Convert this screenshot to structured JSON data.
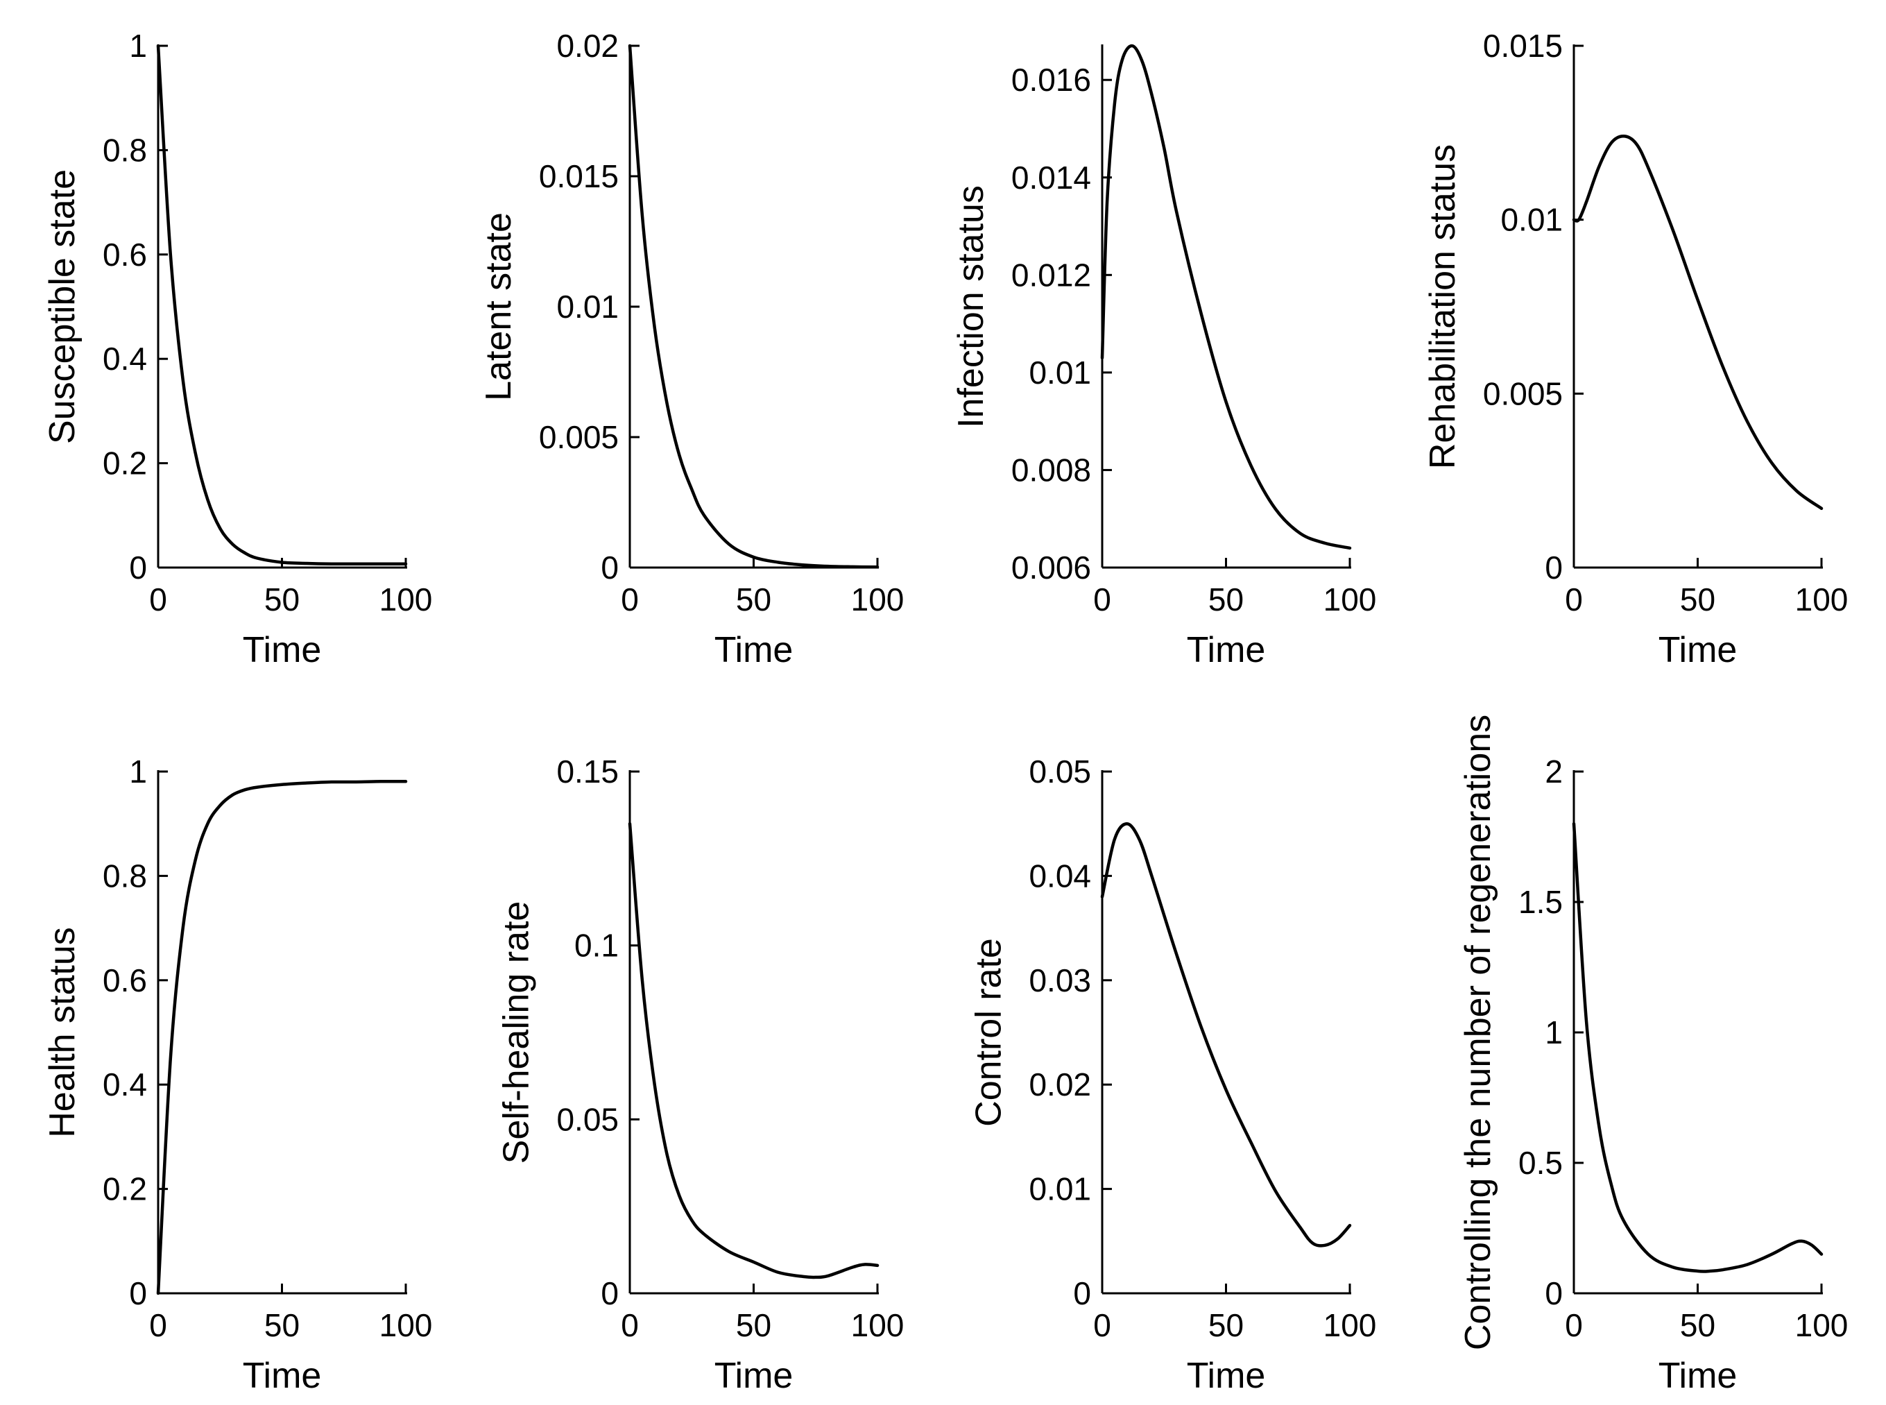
{
  "chart_data": [
    {
      "type": "line",
      "xlabel": "Time",
      "ylabel": "Susceptible state",
      "xlim": [
        0,
        100
      ],
      "ylim": [
        0,
        1
      ],
      "xticks": [
        0,
        50,
        100
      ],
      "xtick_labels": [
        "0",
        "50",
        "100"
      ],
      "yticks": [
        0,
        0.2,
        0.4,
        0.6,
        0.8,
        1
      ],
      "ytick_labels": [
        "0",
        "0.2",
        "0.4",
        "0.6",
        "0.8",
        "1"
      ],
      "series": [
        {
          "name": "Susceptible state",
          "x": [
            0,
            5,
            10,
            15,
            20,
            25,
            30,
            35,
            40,
            50,
            60,
            70,
            80,
            90,
            100
          ],
          "y": [
            1,
            0.6,
            0.36,
            0.22,
            0.13,
            0.075,
            0.045,
            0.028,
            0.018,
            0.01,
            0.008,
            0.007,
            0.007,
            0.007,
            0.007
          ]
        }
      ]
    },
    {
      "type": "line",
      "xlabel": "Time",
      "ylabel": "Latent state",
      "xlim": [
        0,
        100
      ],
      "ylim": [
        0,
        0.02
      ],
      "xticks": [
        0,
        50,
        100
      ],
      "xtick_labels": [
        "0",
        "50",
        "100"
      ],
      "yticks": [
        0,
        0.005,
        0.01,
        0.015,
        0.02
      ],
      "ytick_labels": [
        "0",
        "0.005",
        "0.01",
        "0.015",
        "0.02"
      ],
      "series": [
        {
          "name": "Latent state",
          "x": [
            0,
            5,
            10,
            15,
            20,
            25,
            30,
            40,
            50,
            60,
            70,
            80,
            90,
            100
          ],
          "y": [
            0.02,
            0.0135,
            0.0092,
            0.0063,
            0.0043,
            0.003,
            0.002,
            0.0009,
            0.0004,
            0.0002,
            0.0001,
            5e-05,
            3e-05,
            2e-05
          ]
        }
      ]
    },
    {
      "type": "line",
      "xlabel": "Time",
      "ylabel": "Infection status",
      "xlim": [
        0,
        100
      ],
      "ylim": [
        0.006,
        0.0167
      ],
      "xticks": [
        0,
        50,
        100
      ],
      "xtick_labels": [
        "0",
        "50",
        "100"
      ],
      "yticks": [
        0.006,
        0.008,
        0.01,
        0.012,
        0.014,
        0.016
      ],
      "ytick_labels": [
        "0.006",
        "0.008",
        "0.01",
        "0.012",
        "0.014",
        "0.016"
      ],
      "series": [
        {
          "name": "Infection status",
          "x": [
            0,
            2,
            5,
            8,
            12,
            16,
            20,
            25,
            30,
            40,
            50,
            60,
            70,
            80,
            90,
            100
          ],
          "y": [
            0.0103,
            0.0135,
            0.0155,
            0.0164,
            0.0167,
            0.0164,
            0.0157,
            0.0146,
            0.0133,
            0.0112,
            0.0094,
            0.0081,
            0.0072,
            0.0067,
            0.0065,
            0.0064
          ]
        }
      ]
    },
    {
      "type": "line",
      "xlabel": "Time",
      "ylabel": "Rehabilitation status",
      "xlim": [
        0,
        100
      ],
      "ylim": [
        0,
        0.015
      ],
      "xticks": [
        0,
        50,
        100
      ],
      "xtick_labels": [
        "0",
        "50",
        "100"
      ],
      "yticks": [
        0,
        0.005,
        0.01,
        0.015
      ],
      "ytick_labels": [
        "0",
        "0.005",
        "0.01",
        "0.015"
      ],
      "series": [
        {
          "name": "Rehabilitation status",
          "x": [
            0,
            2,
            5,
            10,
            15,
            20,
            25,
            30,
            40,
            50,
            60,
            70,
            80,
            90,
            100
          ],
          "y": [
            0.01,
            0.01,
            0.0105,
            0.0115,
            0.0122,
            0.0124,
            0.0122,
            0.0115,
            0.0097,
            0.0077,
            0.0058,
            0.0042,
            0.003,
            0.0022,
            0.0017
          ]
        }
      ]
    },
    {
      "type": "line",
      "xlabel": "Time",
      "ylabel": "Health status",
      "xlim": [
        0,
        100
      ],
      "ylim": [
        0,
        1
      ],
      "xticks": [
        0,
        50,
        100
      ],
      "xtick_labels": [
        "0",
        "50",
        "100"
      ],
      "yticks": [
        0,
        0.2,
        0.4,
        0.6,
        0.8,
        1
      ],
      "ytick_labels": [
        "0",
        "0.2",
        "0.4",
        "0.6",
        "0.8",
        "1"
      ],
      "series": [
        {
          "name": "Health status",
          "x": [
            0,
            5,
            10,
            15,
            20,
            25,
            30,
            35,
            40,
            50,
            60,
            70,
            80,
            90,
            100
          ],
          "y": [
            0,
            0.45,
            0.7,
            0.83,
            0.9,
            0.935,
            0.955,
            0.965,
            0.97,
            0.975,
            0.978,
            0.98,
            0.98,
            0.981,
            0.981
          ]
        }
      ]
    },
    {
      "type": "line",
      "xlabel": "Time",
      "ylabel": "Self-healing rate",
      "xlim": [
        0,
        100
      ],
      "ylim": [
        0,
        0.15
      ],
      "xticks": [
        0,
        50,
        100
      ],
      "xtick_labels": [
        "0",
        "50",
        "100"
      ],
      "yticks": [
        0,
        0.05,
        0.1,
        0.15
      ],
      "ytick_labels": [
        "0",
        "0.05",
        "0.1",
        "0.15"
      ],
      "series": [
        {
          "name": "Self-healing rate",
          "x": [
            0,
            5,
            10,
            15,
            20,
            25,
            30,
            40,
            50,
            60,
            70,
            75,
            80,
            90,
            95,
            100
          ],
          "y": [
            0.135,
            0.09,
            0.06,
            0.04,
            0.028,
            0.021,
            0.017,
            0.012,
            0.009,
            0.006,
            0.0048,
            0.0046,
            0.005,
            0.0075,
            0.0083,
            0.008
          ]
        }
      ]
    },
    {
      "type": "line",
      "xlabel": "Time",
      "ylabel": "Control rate",
      "xlim": [
        0,
        100
      ],
      "ylim": [
        0,
        0.05
      ],
      "xticks": [
        0,
        50,
        100
      ],
      "xtick_labels": [
        "0",
        "50",
        "100"
      ],
      "yticks": [
        0,
        0.01,
        0.02,
        0.03,
        0.04,
        0.05
      ],
      "ytick_labels": [
        "0",
        "0.01",
        "0.02",
        "0.03",
        "0.04",
        "0.05"
      ],
      "series": [
        {
          "name": "Control rate",
          "x": [
            0,
            5,
            10,
            15,
            20,
            30,
            40,
            50,
            60,
            70,
            80,
            85,
            90,
            95,
            100
          ],
          "y": [
            0.038,
            0.0435,
            0.045,
            0.0435,
            0.04,
            0.0325,
            0.0255,
            0.0195,
            0.0145,
            0.0098,
            0.0063,
            0.0048,
            0.0046,
            0.0052,
            0.0065
          ]
        }
      ]
    },
    {
      "type": "line",
      "xlabel": "Time",
      "ylabel": "Controlling the number of regenerations",
      "xlim": [
        0,
        100
      ],
      "ylim": [
        0,
        2
      ],
      "xticks": [
        0,
        50,
        100
      ],
      "xtick_labels": [
        "0",
        "50",
        "100"
      ],
      "yticks": [
        0,
        0.5,
        1,
        1.5,
        2
      ],
      "ytick_labels": [
        "0",
        "0.5",
        "1",
        "1.5",
        "2"
      ],
      "series": [
        {
          "name": "Controlling the number of regenerations",
          "x": [
            0,
            5,
            10,
            15,
            20,
            30,
            40,
            50,
            55,
            60,
            70,
            80,
            88,
            92,
            96,
            100
          ],
          "y": [
            1.8,
            1.05,
            0.65,
            0.42,
            0.28,
            0.15,
            0.1,
            0.085,
            0.085,
            0.09,
            0.11,
            0.15,
            0.19,
            0.2,
            0.185,
            0.15
          ]
        }
      ]
    }
  ]
}
